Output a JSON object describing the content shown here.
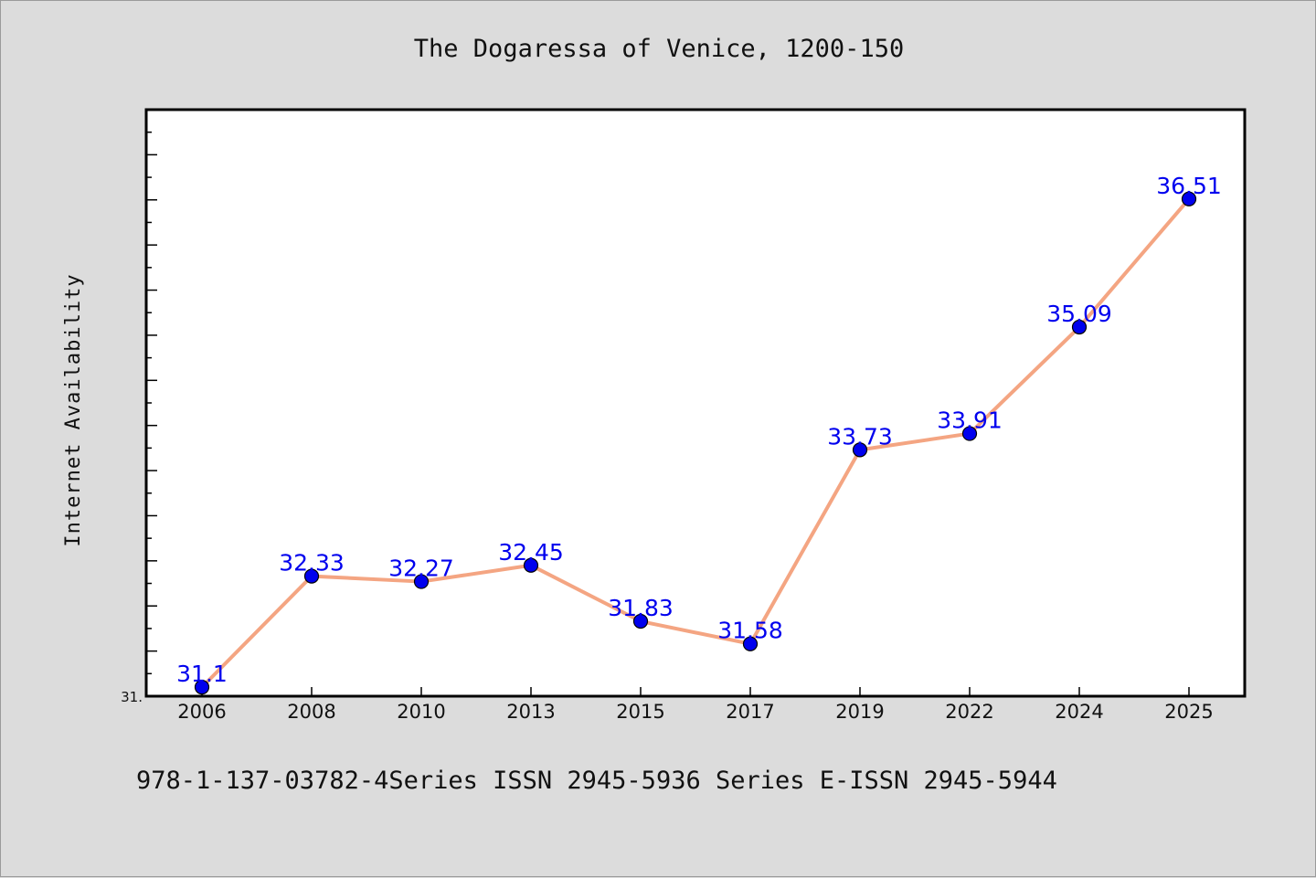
{
  "chart_data": {
    "type": "line",
    "title": "The Dogaressa of Venice, 1200-150",
    "ylabel": "Internet Availability",
    "xlabel": "",
    "categories": [
      "2006",
      "2008",
      "2010",
      "2013",
      "2015",
      "2017",
      "2019",
      "2022",
      "2024",
      "2025"
    ],
    "series": [
      {
        "values": [
          31.1,
          32.33,
          32.27,
          32.45,
          31.83,
          31.58,
          33.73,
          33.91,
          35.09,
          36.51
        ],
        "labels": [
          "31.1",
          "32.33",
          "32.27",
          "32.45",
          "31.83",
          "31.58",
          "33.73",
          "33.91",
          "35.09",
          "36.51"
        ],
        "line_color": "#f4a582",
        "marker_color": "#0000ee"
      }
    ],
    "ylim": [
      31.0,
      37.5
    ],
    "ytick_labels": [
      {
        "value": 31.0,
        "text": "31."
      }
    ],
    "grid": false,
    "legend": "none"
  },
  "footer": {
    "text": "978-1-137-03782-4Series ISSN 2945-5936 Series E-ISSN 2945-5944"
  },
  "colors": {
    "background": "#dcdcdc",
    "plot_background": "#ffffff",
    "axis": "#000000",
    "data_label": "#0000ee"
  }
}
